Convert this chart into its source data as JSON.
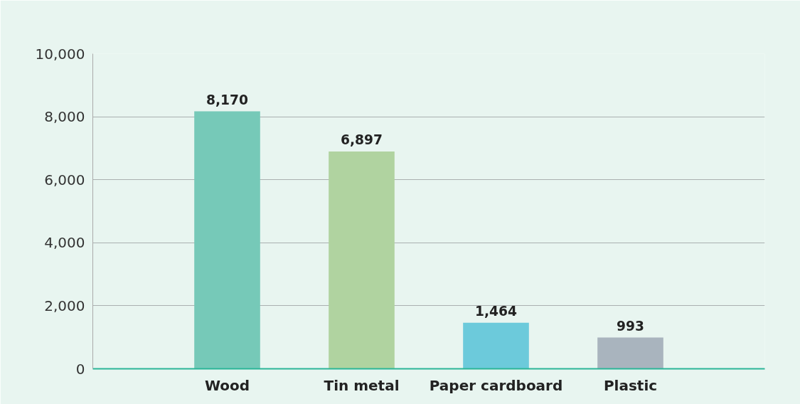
{
  "chart_data": {
    "type": "bar",
    "categories": [
      "Wood",
      "Tin metal",
      "Paper cardboard",
      "Plastic"
    ],
    "values": [
      8170,
      6897,
      1464,
      993
    ],
    "colors": [
      "#76c9b8",
      "#b0d3a0",
      "#6ccadb",
      "#a9b4be"
    ],
    "value_labels": [
      "8,170",
      "6,897",
      "1,464",
      "993"
    ],
    "ylim": [
      0,
      10000
    ],
    "yticks": [
      {
        "value": 0,
        "label": "0"
      },
      {
        "value": 2000,
        "label": "2,000"
      },
      {
        "value": 4000,
        "label": "4,000"
      },
      {
        "value": 6000,
        "label": "6,000"
      },
      {
        "value": 8000,
        "label": "8,000"
      },
      {
        "value": 10000,
        "label": "10,000"
      }
    ],
    "grid": "y"
  }
}
